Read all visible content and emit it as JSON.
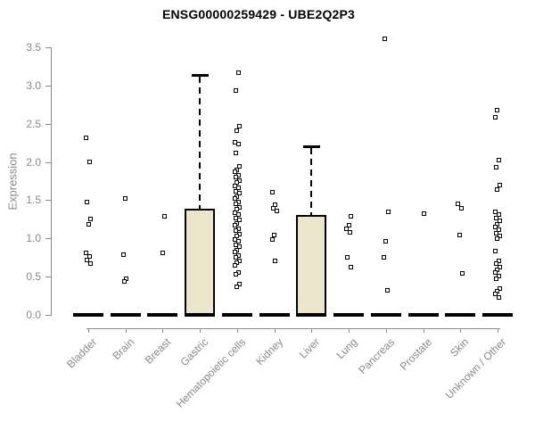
{
  "header": {
    "title": "ENSG00000259429 - UBE2Q2P3"
  },
  "colors": {
    "background": "#FFFFFF",
    "title_text": "#000000",
    "axis_text": "#898989",
    "axis_line": "#8A8A8A",
    "box_fill": "#EBE6CB",
    "box_border": "#000000",
    "point": "#000000",
    "median": "#000000"
  },
  "chart_data": {
    "type": "boxplot",
    "title": "ENSG00000259429 - UBE2Q2P3",
    "xlabel": "",
    "ylabel": "Expression",
    "ylim": [
      0.0,
      3.5
    ],
    "yticks": [
      0.0,
      0.5,
      1.0,
      1.5,
      2.0,
      2.5,
      3.0,
      3.5
    ],
    "ytick_labels": [
      "0.0",
      "0.5",
      "1.0",
      "1.5",
      "2.0",
      "2.5",
      "3.0",
      "3.5"
    ],
    "grid": false,
    "legend": false,
    "categories": [
      "Bladder",
      "Brain",
      "Breast",
      "Gastric",
      "Hematopoietic cells",
      "Kidney",
      "Liver",
      "Lung",
      "Pancreas",
      "Prostate",
      "Skin",
      "Unknown / Other"
    ],
    "series": [
      {
        "name": "Bladder",
        "median": 0.0,
        "box": null,
        "points": [
          2.32,
          2.0,
          1.48,
          1.25,
          1.19,
          0.81,
          0.77,
          0.72,
          0.67
        ]
      },
      {
        "name": "Brain",
        "median": 0.0,
        "box": null,
        "points": [
          1.52,
          0.79,
          0.47,
          0.44
        ]
      },
      {
        "name": "Breast",
        "median": 0.0,
        "box": null,
        "points": [
          1.29,
          0.81
        ]
      },
      {
        "name": "Gastric",
        "median": 0.0,
        "box": {
          "q1": 0.0,
          "median": 0.0,
          "q3": 1.39,
          "whisker_low": 0.0,
          "whisker_high": 3.14
        },
        "points": []
      },
      {
        "name": "Hematopoietic cells",
        "median": 0.0,
        "box": null,
        "points": [
          3.17,
          2.94,
          2.47,
          2.41,
          2.26,
          2.23,
          2.12,
          1.94,
          1.9,
          1.87,
          1.83,
          1.8,
          1.76,
          1.73,
          1.69,
          1.66,
          1.62,
          1.59,
          1.55,
          1.52,
          1.48,
          1.45,
          1.41,
          1.38,
          1.34,
          1.31,
          1.27,
          1.24,
          1.2,
          1.17,
          1.13,
          1.1,
          1.06,
          1.03,
          0.99,
          0.96,
          0.92,
          0.89,
          0.85,
          0.82,
          0.78,
          0.75,
          0.71,
          0.68,
          0.65,
          0.56,
          0.53,
          0.4,
          0.37
        ]
      },
      {
        "name": "Kidney",
        "median": 0.0,
        "box": null,
        "points": [
          1.6,
          1.44,
          1.4,
          1.36,
          1.04,
          0.99,
          0.71
        ]
      },
      {
        "name": "Liver",
        "median": 0.0,
        "box": {
          "q1": 0.0,
          "median": 0.0,
          "q3": 1.31,
          "whisker_low": 0.0,
          "whisker_high": 2.21
        },
        "points": []
      },
      {
        "name": "Lung",
        "median": 0.0,
        "box": null,
        "points": [
          1.29,
          1.17,
          1.13,
          1.08,
          0.75,
          0.62
        ]
      },
      {
        "name": "Pancreas",
        "median": 0.0,
        "box": null,
        "points": [
          3.61,
          1.35,
          0.96,
          0.75,
          0.32
        ]
      },
      {
        "name": "Prostate",
        "median": 0.0,
        "box": null,
        "points": [
          1.32
        ]
      },
      {
        "name": "Skin",
        "median": 0.0,
        "box": null,
        "points": [
          1.45,
          1.39,
          1.04,
          0.54
        ]
      },
      {
        "name": "Unknown / Other",
        "median": 0.0,
        "box": null,
        "points": [
          2.68,
          2.58,
          2.03,
          1.93,
          1.7,
          1.64,
          1.35,
          1.31,
          1.27,
          1.23,
          1.19,
          1.15,
          1.11,
          1.07,
          1.03,
          1.0,
          0.84,
          0.71,
          0.67,
          0.63,
          0.59,
          0.55,
          0.51,
          0.47,
          0.35,
          0.31,
          0.27,
          0.23
        ]
      }
    ]
  }
}
